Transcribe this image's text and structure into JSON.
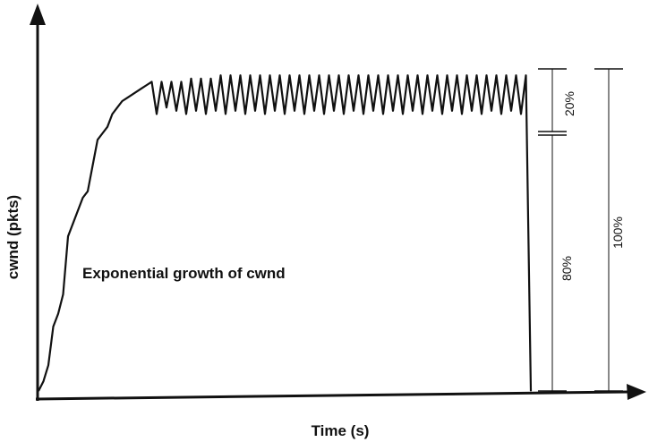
{
  "chart_data": {
    "type": "line",
    "title": "",
    "xlabel": "Time (s)",
    "ylabel": "cwnd (pkts)",
    "annotation": "Exponential growth of cwnd",
    "x_range": [
      0,
      100
    ],
    "y_range": [
      0,
      100
    ],
    "grid": false,
    "series": [
      {
        "values": [
          [
            0,
            0
          ],
          [
            1,
            3
          ],
          [
            2,
            8
          ],
          [
            3,
            20
          ],
          [
            4,
            24
          ],
          [
            5,
            30
          ],
          [
            6,
            48
          ],
          [
            7,
            52
          ],
          [
            8,
            56
          ],
          [
            9,
            60
          ],
          [
            10,
            62
          ],
          [
            11,
            70
          ],
          [
            12,
            78
          ],
          [
            13,
            80
          ],
          [
            14,
            82
          ],
          [
            15,
            86
          ],
          [
            16,
            88
          ],
          [
            17,
            90
          ],
          [
            18,
            91
          ],
          [
            19,
            92
          ],
          [
            20,
            93
          ],
          [
            21,
            94
          ],
          [
            22,
            95
          ],
          [
            23,
            96
          ],
          [
            24,
            86
          ],
          [
            25,
            96
          ],
          [
            26,
            88
          ],
          [
            27,
            96
          ],
          [
            28,
            87
          ],
          [
            29,
            96
          ],
          [
            30,
            86
          ],
          [
            31,
            97
          ],
          [
            32,
            87
          ],
          [
            33,
            97
          ],
          [
            34,
            86
          ],
          [
            35,
            97
          ],
          [
            36,
            87
          ],
          [
            37,
            98
          ],
          [
            38,
            86
          ],
          [
            39,
            98
          ],
          [
            40,
            87
          ],
          [
            41,
            98
          ],
          [
            42,
            86
          ],
          [
            43,
            98
          ],
          [
            44,
            87
          ],
          [
            45,
            98
          ],
          [
            46,
            86
          ],
          [
            47,
            98
          ],
          [
            48,
            87
          ],
          [
            49,
            98
          ],
          [
            50,
            86
          ],
          [
            51,
            98
          ],
          [
            52,
            87
          ],
          [
            53,
            98
          ],
          [
            54,
            86
          ],
          [
            55,
            98
          ],
          [
            56,
            87
          ],
          [
            57,
            98
          ],
          [
            58,
            86
          ],
          [
            59,
            98
          ],
          [
            60,
            87
          ],
          [
            61,
            98
          ],
          [
            62,
            86
          ],
          [
            63,
            98
          ],
          [
            64,
            87
          ],
          [
            65,
            98
          ],
          [
            66,
            86
          ],
          [
            67,
            98
          ],
          [
            68,
            87
          ],
          [
            69,
            98
          ],
          [
            70,
            86
          ],
          [
            71,
            98
          ],
          [
            72,
            87
          ],
          [
            73,
            98
          ],
          [
            74,
            86
          ],
          [
            75,
            98
          ],
          [
            76,
            87
          ],
          [
            77,
            98
          ],
          [
            78,
            86
          ],
          [
            79,
            98
          ],
          [
            80,
            87
          ],
          [
            81,
            98
          ],
          [
            82,
            86
          ],
          [
            83,
            98
          ],
          [
            84,
            87
          ],
          [
            85,
            98
          ],
          [
            86,
            86
          ],
          [
            87,
            98
          ],
          [
            88,
            87
          ],
          [
            89,
            98
          ],
          [
            90,
            86
          ],
          [
            91,
            98
          ],
          [
            92,
            87
          ],
          [
            93,
            98
          ],
          [
            94,
            86
          ],
          [
            95,
            98
          ],
          [
            96,
            87
          ],
          [
            97,
            98
          ],
          [
            98,
            86
          ],
          [
            99,
            98
          ],
          [
            100,
            0
          ]
        ]
      }
    ],
    "brackets": [
      {
        "label": "20%",
        "from": 80,
        "to": 100,
        "column": "inner"
      },
      {
        "label": "80%",
        "from": 0,
        "to": 80,
        "column": "inner"
      },
      {
        "label": "100%",
        "from": 0,
        "to": 100,
        "column": "outer"
      }
    ]
  }
}
